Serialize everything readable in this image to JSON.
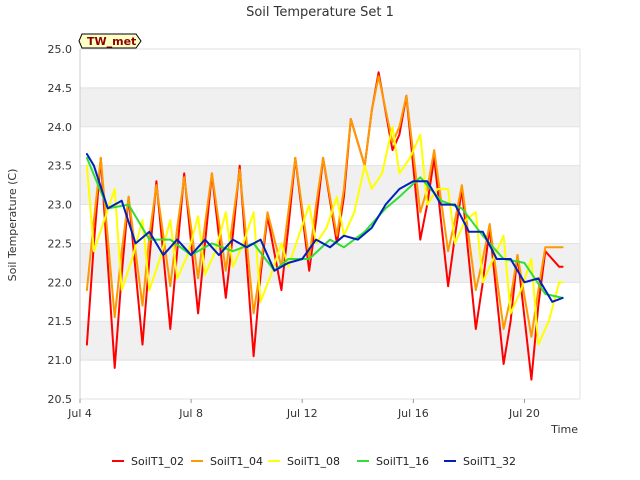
{
  "chart_data": {
    "type": "line",
    "title": "Soil Temperature Set 1",
    "xlabel": "Time",
    "ylabel": "Soil Temperature (C)",
    "badge": "TW_met",
    "x_range": [
      "2023-07-04",
      "2023-07-22"
    ],
    "ylim": [
      20.5,
      25.0
    ],
    "yticks": [
      "20.5",
      "21.0",
      "21.5",
      "22.0",
      "22.5",
      "23.0",
      "23.5",
      "24.0",
      "24.5",
      "25.0"
    ],
    "xticks": [
      {
        "label": "Jul 4",
        "date": "2023-07-04"
      },
      {
        "label": "Jul 8",
        "date": "2023-07-08"
      },
      {
        "label": "Jul 12",
        "date": "2023-07-12"
      },
      {
        "label": "Jul 16",
        "date": "2023-07-16"
      },
      {
        "label": "Jul 20",
        "date": "2023-07-20"
      }
    ],
    "legend_position": "bottom",
    "series": [
      {
        "name": "SoilT1_02",
        "color": "#ff0000",
        "x": [
          "2023-07-04 06:00",
          "2023-07-04 12:00",
          "2023-07-04 18:00",
          "2023-07-05 06:00",
          "2023-07-05 12:00",
          "2023-07-05 18:00",
          "2023-07-06 06:00",
          "2023-07-06 12:00",
          "2023-07-06 18:00",
          "2023-07-07 06:00",
          "2023-07-07 12:00",
          "2023-07-07 18:00",
          "2023-07-08 06:00",
          "2023-07-08 12:00",
          "2023-07-08 18:00",
          "2023-07-09 06:00",
          "2023-07-09 12:00",
          "2023-07-09 18:00",
          "2023-07-10 06:00",
          "2023-07-10 12:00",
          "2023-07-10 18:00",
          "2023-07-11 06:00",
          "2023-07-11 12:00",
          "2023-07-11 18:00",
          "2023-07-12 06:00",
          "2023-07-12 12:00",
          "2023-07-12 18:00",
          "2023-07-13 06:00",
          "2023-07-13 12:00",
          "2023-07-13 18:00",
          "2023-07-14 06:00",
          "2023-07-14 12:00",
          "2023-07-14 18:00",
          "2023-07-15 06:00",
          "2023-07-15 12:00",
          "2023-07-15 18:00",
          "2023-07-16 06:00",
          "2023-07-16 12:00",
          "2023-07-16 18:00",
          "2023-07-17 06:00",
          "2023-07-17 12:00",
          "2023-07-17 18:00",
          "2023-07-18 06:00",
          "2023-07-18 12:00",
          "2023-07-18 18:00",
          "2023-07-19 06:00",
          "2023-07-19 12:00",
          "2023-07-19 18:00",
          "2023-07-20 06:00",
          "2023-07-20 12:00",
          "2023-07-20 18:00",
          "2023-07-21 06:00",
          "2023-07-21 09:00"
        ],
        "y": [
          21.2,
          22.5,
          23.6,
          20.9,
          22.1,
          23.1,
          21.2,
          22.3,
          23.3,
          21.4,
          22.4,
          23.4,
          21.6,
          22.5,
          23.4,
          21.8,
          22.6,
          23.5,
          21.05,
          22.1,
          22.85,
          21.9,
          22.7,
          23.6,
          22.15,
          22.8,
          23.6,
          22.5,
          23.1,
          24.1,
          23.5,
          24.2,
          24.7,
          23.7,
          23.9,
          24.4,
          22.55,
          23.0,
          23.6,
          21.95,
          22.6,
          23.2,
          21.4,
          22.0,
          22.7,
          20.95,
          21.5,
          22.35,
          20.75,
          21.7,
          22.4,
          22.2,
          22.2
        ]
      },
      {
        "name": "SoilT1_04",
        "color": "#ff9900",
        "x": [
          "2023-07-04 06:00",
          "2023-07-04 12:00",
          "2023-07-04 18:00",
          "2023-07-05 06:00",
          "2023-07-05 12:00",
          "2023-07-05 18:00",
          "2023-07-06 06:00",
          "2023-07-06 12:00",
          "2023-07-06 18:00",
          "2023-07-07 06:00",
          "2023-07-07 12:00",
          "2023-07-07 18:00",
          "2023-07-08 06:00",
          "2023-07-08 12:00",
          "2023-07-08 18:00",
          "2023-07-09 06:00",
          "2023-07-09 12:00",
          "2023-07-09 18:00",
          "2023-07-10 06:00",
          "2023-07-10 12:00",
          "2023-07-10 18:00",
          "2023-07-11 06:00",
          "2023-07-11 12:00",
          "2023-07-11 18:00",
          "2023-07-12 06:00",
          "2023-07-12 12:00",
          "2023-07-12 18:00",
          "2023-07-13 06:00",
          "2023-07-13 12:00",
          "2023-07-13 18:00",
          "2023-07-14 06:00",
          "2023-07-14 12:00",
          "2023-07-14 18:00",
          "2023-07-15 06:00",
          "2023-07-15 12:00",
          "2023-07-15 18:00",
          "2023-07-16 06:00",
          "2023-07-16 12:00",
          "2023-07-16 18:00",
          "2023-07-17 06:00",
          "2023-07-17 12:00",
          "2023-07-17 18:00",
          "2023-07-18 06:00",
          "2023-07-18 12:00",
          "2023-07-18 18:00",
          "2023-07-19 06:00",
          "2023-07-19 12:00",
          "2023-07-19 18:00",
          "2023-07-20 06:00",
          "2023-07-20 12:00",
          "2023-07-20 18:00",
          "2023-07-21 06:00",
          "2023-07-21 09:00"
        ],
        "y": [
          21.9,
          22.8,
          23.6,
          21.55,
          22.4,
          23.1,
          21.7,
          22.6,
          23.25,
          21.95,
          22.7,
          23.35,
          22.05,
          22.75,
          23.4,
          22.15,
          22.8,
          23.45,
          21.6,
          22.2,
          22.9,
          22.2,
          22.9,
          23.6,
          22.3,
          23.0,
          23.6,
          22.6,
          23.2,
          24.1,
          23.5,
          24.2,
          24.65,
          23.8,
          24.0,
          24.4,
          22.9,
          23.2,
          23.7,
          22.4,
          22.8,
          23.25,
          21.9,
          22.3,
          22.75,
          21.4,
          21.8,
          22.35,
          21.3,
          21.9,
          22.45,
          22.45,
          22.45
        ]
      },
      {
        "name": "SoilT1_08",
        "color": "#ffff00",
        "x": [
          "2023-07-04 06:00",
          "2023-07-04 12:00",
          "2023-07-04 21:00",
          "2023-07-05 06:00",
          "2023-07-05 12:00",
          "2023-07-05 21:00",
          "2023-07-06 06:00",
          "2023-07-06 12:00",
          "2023-07-06 21:00",
          "2023-07-07 06:00",
          "2023-07-07 12:00",
          "2023-07-07 21:00",
          "2023-07-08 06:00",
          "2023-07-08 12:00",
          "2023-07-08 21:00",
          "2023-07-09 06:00",
          "2023-07-09 12:00",
          "2023-07-09 21:00",
          "2023-07-10 06:00",
          "2023-07-10 12:00",
          "2023-07-10 21:00",
          "2023-07-11 06:00",
          "2023-07-11 12:00",
          "2023-07-11 21:00",
          "2023-07-12 06:00",
          "2023-07-12 12:00",
          "2023-07-12 21:00",
          "2023-07-13 06:00",
          "2023-07-13 12:00",
          "2023-07-13 21:00",
          "2023-07-14 06:00",
          "2023-07-14 12:00",
          "2023-07-14 21:00",
          "2023-07-15 06:00",
          "2023-07-15 12:00",
          "2023-07-15 21:00",
          "2023-07-16 06:00",
          "2023-07-16 12:00",
          "2023-07-16 21:00",
          "2023-07-17 06:00",
          "2023-07-17 12:00",
          "2023-07-17 21:00",
          "2023-07-18 06:00",
          "2023-07-18 12:00",
          "2023-07-18 21:00",
          "2023-07-19 06:00",
          "2023-07-19 12:00",
          "2023-07-19 21:00",
          "2023-07-20 06:00",
          "2023-07-20 12:00",
          "2023-07-20 21:00",
          "2023-07-21 06:00",
          "2023-07-21 09:00"
        ],
        "y": [
          23.5,
          22.4,
          22.8,
          23.2,
          21.9,
          22.3,
          22.8,
          21.9,
          22.3,
          22.8,
          22.05,
          22.35,
          22.85,
          22.1,
          22.4,
          22.9,
          22.2,
          22.5,
          22.9,
          21.75,
          22.1,
          22.5,
          22.2,
          22.6,
          23.0,
          22.5,
          22.7,
          23.1,
          22.6,
          22.9,
          23.5,
          23.2,
          23.4,
          24.0,
          23.4,
          23.6,
          23.9,
          23.0,
          23.2,
          23.2,
          22.5,
          22.8,
          22.9,
          22.0,
          22.3,
          22.6,
          21.6,
          21.9,
          22.3,
          21.2,
          21.5,
          22.0,
          22.0
        ]
      },
      {
        "name": "SoilT1_16",
        "color": "#33dd33",
        "x": [
          "2023-07-04 06:00",
          "2023-07-05 00:00",
          "2023-07-05 18:00",
          "2023-07-06 12:00",
          "2023-07-07 06:00",
          "2023-07-08 00:00",
          "2023-07-08 18:00",
          "2023-07-09 12:00",
          "2023-07-10 06:00",
          "2023-07-11 00:00",
          "2023-07-11 12:00",
          "2023-07-12 06:00",
          "2023-07-13 00:00",
          "2023-07-13 12:00",
          "2023-07-14 06:00",
          "2023-07-15 00:00",
          "2023-07-15 12:00",
          "2023-07-16 06:00",
          "2023-07-17 00:00",
          "2023-07-17 18:00",
          "2023-07-18 12:00",
          "2023-07-19 06:00",
          "2023-07-20 00:00",
          "2023-07-20 18:00",
          "2023-07-21 09:00"
        ],
        "y": [
          23.6,
          22.95,
          23.0,
          22.55,
          22.55,
          22.35,
          22.5,
          22.4,
          22.5,
          22.15,
          22.3,
          22.3,
          22.55,
          22.45,
          22.65,
          22.95,
          23.1,
          23.35,
          23.05,
          22.95,
          22.6,
          22.3,
          22.25,
          21.85,
          21.8
        ]
      },
      {
        "name": "SoilT1_32",
        "color": "#0022bb",
        "x": [
          "2023-07-04 06:00",
          "2023-07-04 12:00",
          "2023-07-05 00:00",
          "2023-07-05 12:00",
          "2023-07-06 00:00",
          "2023-07-06 12:00",
          "2023-07-07 00:00",
          "2023-07-07 12:00",
          "2023-07-08 00:00",
          "2023-07-08 12:00",
          "2023-07-09 00:00",
          "2023-07-09 12:00",
          "2023-07-10 00:00",
          "2023-07-10 12:00",
          "2023-07-11 00:00",
          "2023-07-11 12:00",
          "2023-07-12 00:00",
          "2023-07-12 12:00",
          "2023-07-13 00:00",
          "2023-07-13 12:00",
          "2023-07-14 00:00",
          "2023-07-14 12:00",
          "2023-07-15 00:00",
          "2023-07-15 12:00",
          "2023-07-16 00:00",
          "2023-07-16 12:00",
          "2023-07-17 00:00",
          "2023-07-17 12:00",
          "2023-07-18 00:00",
          "2023-07-18 12:00",
          "2023-07-19 00:00",
          "2023-07-19 12:00",
          "2023-07-20 00:00",
          "2023-07-20 12:00",
          "2023-07-21 00:00",
          "2023-07-21 09:00"
        ],
        "y": [
          23.65,
          23.5,
          22.95,
          23.05,
          22.5,
          22.65,
          22.35,
          22.55,
          22.35,
          22.55,
          22.35,
          22.55,
          22.45,
          22.55,
          22.15,
          22.25,
          22.3,
          22.55,
          22.45,
          22.6,
          22.55,
          22.7,
          23.0,
          23.2,
          23.3,
          23.3,
          23.0,
          23.0,
          22.65,
          22.65,
          22.3,
          22.3,
          22.0,
          22.05,
          21.75,
          21.8
        ]
      }
    ]
  }
}
